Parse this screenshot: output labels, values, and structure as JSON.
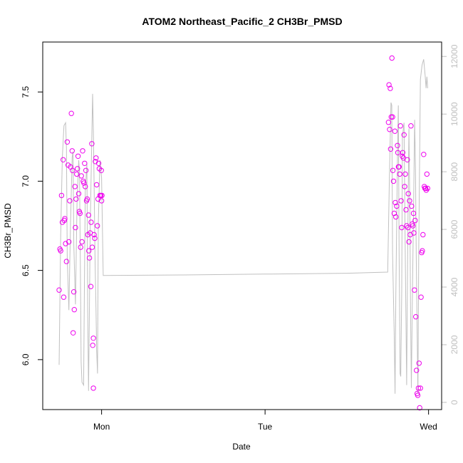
{
  "chart_data": {
    "type": "scatter",
    "title": "ATOM2 Northeast_Pacific_2 CH3Br_PMSD",
    "xlabel": "Date",
    "ylabel": "CH3Br_PMSD",
    "x_axis": {
      "ticks": [
        {
          "value": 1.0,
          "label": "Mon"
        },
        {
          "value": 2.0,
          "label": "Tue"
        },
        {
          "value": 3.0,
          "label": "Wed"
        }
      ],
      "range": [
        0.64,
        3.08
      ]
    },
    "y_axis": {
      "ticks": [
        6.0,
        6.5,
        7.0,
        7.5
      ],
      "tick_labels": [
        "6.0",
        "6.5",
        "7.0",
        "7.5"
      ],
      "range": [
        5.72,
        7.78
      ]
    },
    "y2_axis": {
      "ticks": [
        0,
        2000,
        4000,
        6000,
        8000,
        10000,
        12000
      ],
      "tick_labels": [
        "0",
        "2000",
        "4000",
        "6000",
        "8000",
        "10000",
        "12000"
      ],
      "range": [
        -250,
        12500
      ],
      "color": "#bfbfbf"
    },
    "series": [
      {
        "kind": "points",
        "axis": "left",
        "color": "#ee00ee",
        "points": [
          [
            0.74,
            6.39
          ],
          [
            0.745,
            6.62
          ],
          [
            0.75,
            6.61
          ],
          [
            0.755,
            6.92
          ],
          [
            0.76,
            6.77
          ],
          [
            0.765,
            7.12
          ],
          [
            0.768,
            6.35
          ],
          [
            0.772,
            6.78
          ],
          [
            0.775,
            6.79
          ],
          [
            0.78,
            6.65
          ],
          [
            0.785,
            6.55
          ],
          [
            0.79,
            7.22
          ],
          [
            0.795,
            7.09
          ],
          [
            0.8,
            6.66
          ],
          [
            0.805,
            6.89
          ],
          [
            0.81,
            7.08
          ],
          [
            0.815,
            7.38
          ],
          [
            0.82,
            7.17
          ],
          [
            0.822,
            7.06
          ],
          [
            0.826,
            6.15
          ],
          [
            0.83,
            6.38
          ],
          [
            0.833,
            6.28
          ],
          [
            0.837,
            6.97
          ],
          [
            0.84,
            6.74
          ],
          [
            0.844,
            6.9
          ],
          [
            0.848,
            7.04
          ],
          [
            0.852,
            7.07
          ],
          [
            0.856,
            7.14
          ],
          [
            0.86,
            6.93
          ],
          [
            0.864,
            6.83
          ],
          [
            0.868,
            6.82
          ],
          [
            0.872,
            6.63
          ],
          [
            0.876,
            7.03
          ],
          [
            0.88,
            6.66
          ],
          [
            0.884,
            7.17
          ],
          [
            0.888,
            7.0
          ],
          [
            0.892,
            6.99
          ],
          [
            0.896,
            7.1
          ],
          [
            0.9,
            6.97
          ],
          [
            0.904,
            7.06
          ],
          [
            0.908,
            6.89
          ],
          [
            0.912,
            6.9
          ],
          [
            0.916,
            6.7
          ],
          [
            0.92,
            6.81
          ],
          [
            0.922,
            6.61
          ],
          [
            0.926,
            6.57
          ],
          [
            0.93,
            6.71
          ],
          [
            0.934,
            6.41
          ],
          [
            0.936,
            6.77
          ],
          [
            0.94,
            7.21
          ],
          [
            0.943,
            6.63
          ],
          [
            0.946,
            6.08
          ],
          [
            0.95,
            6.12
          ],
          [
            0.954,
            6.7
          ],
          [
            0.958,
            6.68
          ],
          [
            0.962,
            7.11
          ],
          [
            0.966,
            7.13
          ],
          [
            0.97,
            6.98
          ],
          [
            0.974,
            6.75
          ],
          [
            0.978,
            6.9
          ],
          [
            0.982,
            7.1
          ],
          [
            0.986,
            7.07
          ],
          [
            0.99,
            6.92
          ],
          [
            0.995,
            6.92
          ],
          [
            1.0,
            6.89
          ],
          [
            0.998,
            7.06
          ],
          [
            1.002,
            6.92
          ],
          [
            0.95,
            5.84
          ],
          [
            2.755,
            7.33
          ],
          [
            2.758,
            7.54
          ],
          [
            2.762,
            7.29
          ],
          [
            2.766,
            7.52
          ],
          [
            2.768,
            7.18
          ],
          [
            2.772,
            7.36
          ],
          [
            2.776,
            7.69
          ],
          [
            2.78,
            7.36
          ],
          [
            2.782,
            7.06
          ],
          [
            2.786,
            7.0
          ],
          [
            2.79,
            6.82
          ],
          [
            2.794,
            7.28
          ],
          [
            2.797,
            6.88
          ],
          [
            2.8,
            6.8
          ],
          [
            2.805,
            6.86
          ],
          [
            2.81,
            7.2
          ],
          [
            2.812,
            7.16
          ],
          [
            2.816,
            7.08
          ],
          [
            2.82,
            7.08
          ],
          [
            2.824,
            7.04
          ],
          [
            2.828,
            7.31
          ],
          [
            2.832,
            6.89
          ],
          [
            2.836,
            6.74
          ],
          [
            2.84,
            7.14
          ],
          [
            2.842,
            7.16
          ],
          [
            2.846,
            7.13
          ],
          [
            2.85,
            7.26
          ],
          [
            2.854,
            6.97
          ],
          [
            2.858,
            7.04
          ],
          [
            2.862,
            6.84
          ],
          [
            2.866,
            6.75
          ],
          [
            2.87,
            7.12
          ],
          [
            2.874,
            6.74
          ],
          [
            2.876,
            6.93
          ],
          [
            2.88,
            6.66
          ],
          [
            2.884,
            6.89
          ],
          [
            2.888,
            6.7
          ],
          [
            2.892,
            7.31
          ],
          [
            2.896,
            6.86
          ],
          [
            2.9,
            6.76
          ],
          [
            2.904,
            6.75
          ],
          [
            2.908,
            6.82
          ],
          [
            2.91,
            6.71
          ],
          [
            2.914,
            6.39
          ],
          [
            2.918,
            6.78
          ],
          [
            2.922,
            6.24
          ],
          [
            2.926,
            5.94
          ],
          [
            2.93,
            5.81
          ],
          [
            2.934,
            5.8
          ],
          [
            2.938,
            5.84
          ],
          [
            2.942,
            5.98
          ],
          [
            2.946,
            5.73
          ],
          [
            2.95,
            5.84
          ],
          [
            2.954,
            6.35
          ],
          [
            2.958,
            6.6
          ],
          [
            2.962,
            6.61
          ],
          [
            2.966,
            6.7
          ],
          [
            2.97,
            7.15
          ],
          [
            2.974,
            6.97
          ],
          [
            2.978,
            6.96
          ],
          [
            2.982,
            6.96
          ],
          [
            2.986,
            6.95
          ],
          [
            2.99,
            7.04
          ],
          [
            2.994,
            6.96
          ]
        ]
      },
      {
        "kind": "line",
        "axis": "right",
        "color": "#c0c0c0",
        "points": [
          [
            0.74,
            1300
          ],
          [
            0.75,
            5800
          ],
          [
            0.76,
            8500
          ],
          [
            0.77,
            9600
          ],
          [
            0.78,
            9700
          ],
          [
            0.785,
            8800
          ],
          [
            0.79,
            5000
          ],
          [
            0.8,
            3200
          ],
          [
            0.81,
            6200
          ],
          [
            0.82,
            8500
          ],
          [
            0.825,
            8700
          ],
          [
            0.83,
            5500
          ],
          [
            0.84,
            3400
          ],
          [
            0.85,
            7000
          ],
          [
            0.86,
            8400
          ],
          [
            0.865,
            8000
          ],
          [
            0.87,
            4800
          ],
          [
            0.875,
            1400
          ],
          [
            0.88,
            700
          ],
          [
            0.89,
            600
          ],
          [
            0.895,
            4000
          ],
          [
            0.9,
            7300
          ],
          [
            0.91,
            8300
          ],
          [
            0.915,
            3200
          ],
          [
            0.92,
            400
          ],
          [
            0.925,
            2900
          ],
          [
            0.93,
            6000
          ],
          [
            0.94,
            9200
          ],
          [
            0.945,
            10700
          ],
          [
            0.95,
            9400
          ],
          [
            0.955,
            7200
          ],
          [
            0.96,
            5000
          ],
          [
            0.965,
            3500
          ],
          [
            0.97,
            1800
          ],
          [
            0.975,
            1000
          ],
          [
            0.98,
            6200
          ],
          [
            0.99,
            8400
          ],
          [
            1.0,
            7800
          ],
          [
            1.01,
            4400
          ],
          [
            1.5,
            4420
          ],
          [
            2.0,
            4450
          ],
          [
            2.5,
            4480
          ],
          [
            2.75,
            4520
          ],
          [
            2.76,
            7700
          ],
          [
            2.77,
            10400
          ],
          [
            2.775,
            10300
          ],
          [
            2.78,
            5200
          ],
          [
            2.79,
            2400
          ],
          [
            2.795,
            300
          ],
          [
            2.8,
            3700
          ],
          [
            2.81,
            8500
          ],
          [
            2.815,
            10300
          ],
          [
            2.82,
            5200
          ],
          [
            2.826,
            1000
          ],
          [
            2.83,
            900
          ],
          [
            2.836,
            3900
          ],
          [
            2.84,
            9200
          ],
          [
            2.85,
            9700
          ],
          [
            2.855,
            6500
          ],
          [
            2.86,
            3800
          ],
          [
            2.866,
            600
          ],
          [
            2.87,
            3600
          ],
          [
            2.876,
            7500
          ],
          [
            2.88,
            9500
          ],
          [
            2.886,
            6300
          ],
          [
            2.89,
            3100
          ],
          [
            2.895,
            500
          ],
          [
            2.9,
            3200
          ],
          [
            2.91,
            7500
          ],
          [
            2.915,
            9800
          ],
          [
            2.92,
            8100
          ],
          [
            2.925,
            5000
          ],
          [
            2.93,
            2500
          ],
          [
            2.935,
            300
          ],
          [
            2.94,
            5400
          ],
          [
            2.95,
            11200
          ],
          [
            2.96,
            11700
          ],
          [
            2.97,
            11900
          ],
          [
            2.975,
            11600
          ],
          [
            2.98,
            11300
          ],
          [
            2.985,
            10900
          ],
          [
            2.99,
            11300
          ],
          [
            2.995,
            10900
          ]
        ]
      }
    ]
  }
}
